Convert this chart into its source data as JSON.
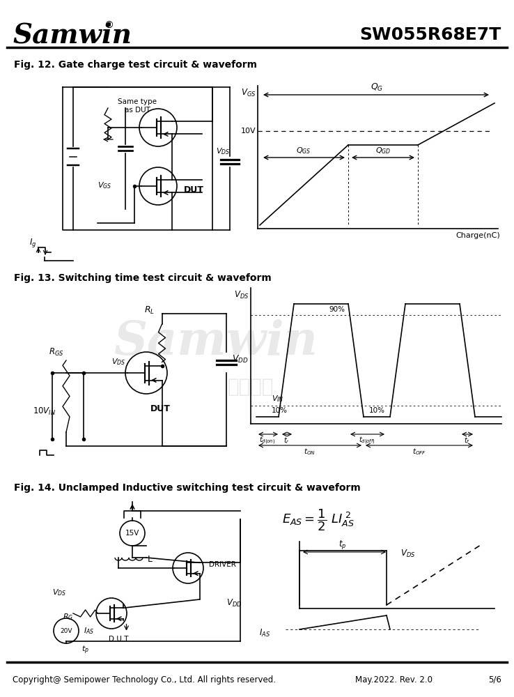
{
  "title_company": "Samwin",
  "title_part": "SW055R68E7T",
  "fig12_title": "Fig. 12. Gate charge test circuit & waveform",
  "fig13_title": "Fig. 13. Switching time test circuit & waveform",
  "fig14_title": "Fig. 14. Unclamped Inductive switching test circuit & waveform",
  "footer_left": "Copyright@ Semipower Technology Co., Ltd. All rights reserved.",
  "footer_mid": "May.2022. Rev. 2.0",
  "footer_right": "5/6",
  "bg_color": "#ffffff",
  "line_color": "#000000"
}
